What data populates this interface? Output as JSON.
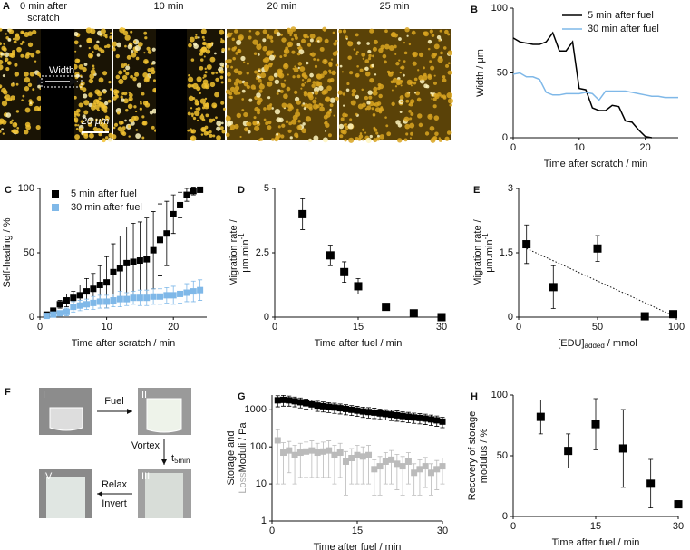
{
  "panels": {
    "a": {
      "panel": "A",
      "captions": [
        "0 min after",
        "scratch",
        "10 min",
        "20 min",
        "25 min"
      ],
      "width_label": "Width",
      "scale_label": "20 μm"
    },
    "f": {
      "panel": "F",
      "vials": [
        "I",
        "II",
        "III",
        "IV"
      ],
      "fuel": "Fuel",
      "vortex": "Vortex",
      "t": "t",
      "t_sub": "5min",
      "relax": "Relax",
      "invert": "Invert"
    }
  },
  "chart_data": [
    {
      "type": "line",
      "panel": "B",
      "xlabel": "Time after scratch / min",
      "ylabel": [
        "Width / μm"
      ],
      "xlim": [
        0,
        25
      ],
      "ylim": [
        0,
        100
      ],
      "xticks": [
        0,
        10,
        20
      ],
      "yticks": [
        0,
        50,
        100
      ],
      "x": [
        0,
        1,
        2,
        3,
        4,
        5,
        6,
        7,
        8,
        9,
        10,
        11,
        12,
        13,
        14,
        15,
        16,
        17,
        18,
        19,
        20,
        21,
        22,
        23,
        24,
        25
      ],
      "series": [
        {
          "name": "5 min after fuel",
          "color": "#000000",
          "values": [
            77,
            74,
            73,
            72,
            72,
            74,
            81,
            67,
            67,
            74,
            38,
            37,
            23,
            21,
            21,
            25,
            24,
            13,
            12,
            6,
            1,
            0,
            null,
            null,
            null,
            null
          ]
        },
        {
          "name": "30 min after fuel",
          "color": "#7fb8e8",
          "values": [
            49,
            50,
            47,
            47,
            45,
            35,
            33,
            33,
            34,
            34,
            34,
            35,
            34,
            29,
            36,
            36,
            36,
            36,
            35,
            34,
            33,
            32,
            32,
            31,
            31,
            31
          ]
        }
      ]
    },
    {
      "type": "scatter",
      "panel": "C",
      "xlabel": "Time after scratch / min",
      "ylabel": [
        "Self-healing / %"
      ],
      "xlim": [
        0,
        25
      ],
      "ylim": [
        0,
        100
      ],
      "xticks": [
        0,
        10,
        20
      ],
      "yticks": [
        0,
        50,
        100
      ],
      "x": [
        1,
        2,
        3,
        4,
        5,
        6,
        7,
        8,
        9,
        10,
        11,
        12,
        13,
        14,
        15,
        16,
        17,
        18,
        19,
        20,
        21,
        22,
        23,
        24
      ],
      "series": [
        {
          "name": "5 min after fuel",
          "color": "#000000",
          "values": [
            2,
            5,
            10,
            13,
            15,
            17,
            20,
            22,
            25,
            27,
            35,
            38,
            42,
            43,
            44,
            45,
            52,
            60,
            65,
            80,
            87,
            95,
            98,
            99
          ],
          "errors": [
            1,
            2,
            3,
            5,
            5,
            8,
            10,
            12,
            15,
            20,
            22,
            25,
            28,
            30,
            30,
            32,
            30,
            28,
            25,
            15,
            10,
            5,
            3,
            2
          ]
        },
        {
          "name": "30 min after fuel",
          "color": "#7fb8e8",
          "values": [
            1,
            2,
            3,
            4,
            8,
            9,
            10,
            11,
            12,
            12,
            13,
            14,
            14,
            15,
            15,
            15,
            16,
            16,
            17,
            17,
            18,
            19,
            20,
            21
          ],
          "errors": [
            1,
            2,
            2,
            3,
            4,
            4,
            4,
            5,
            5,
            5,
            5,
            6,
            5,
            5,
            6,
            6,
            6,
            6,
            6,
            7,
            7,
            7,
            8,
            8
          ]
        }
      ]
    },
    {
      "type": "scatter",
      "panel": "D",
      "xlabel": "Time after fuel / min",
      "ylabel": [
        "Migration rate /",
        "μm.min"
      ],
      "ylabel_sup": "-1",
      "xlim": [
        0,
        30
      ],
      "ylim": [
        0,
        5
      ],
      "xticks": [
        0,
        15,
        30
      ],
      "yticks": [
        0,
        2.5,
        5
      ],
      "x": [
        5,
        10,
        12.5,
        15,
        20,
        25,
        30
      ],
      "series": [
        {
          "color": "#000000",
          "values": [
            4.0,
            2.4,
            1.75,
            1.2,
            0.4,
            0.15,
            0.0
          ],
          "errors": [
            0.6,
            0.4,
            0.4,
            0.3,
            0.1,
            0.1,
            0.05
          ]
        }
      ]
    },
    {
      "type": "scatter",
      "panel": "E",
      "xlabel": "[EDU]",
      "xlabel_sub": "added",
      "xlabel_suffix": "/ mmol",
      "ylabel": [
        "Migration rate /",
        "μm.min"
      ],
      "ylabel_sup": "-1",
      "xlim": [
        0,
        100
      ],
      "ylim": [
        0,
        3
      ],
      "xticks": [
        0,
        50,
        100
      ],
      "yticks": [
        0,
        1.5,
        3
      ],
      "x": [
        5,
        22,
        50,
        80,
        98
      ],
      "series": [
        {
          "color": "#000000",
          "values": [
            1.7,
            0.7,
            1.6,
            0.02,
            0.07
          ],
          "errors": [
            0.45,
            0.5,
            0.3,
            0.02,
            0.05
          ]
        }
      ],
      "trendline": {
        "x": [
          5,
          100
        ],
        "y": [
          1.6,
          0
        ]
      }
    },
    {
      "type": "scatter",
      "panel": "G",
      "log_y": true,
      "xlabel": "Time after fuel / min",
      "ylabel": [
        "Storage and",
        "Moduli / Pa"
      ],
      "ylabel_prefix": "Loss",
      "xlim": [
        0,
        30
      ],
      "ylim": [
        1,
        2500
      ],
      "xticks": [
        0,
        15,
        30
      ],
      "yticks": [
        1,
        10,
        100,
        1000
      ],
      "x": [
        1,
        2,
        3,
        4,
        5,
        6,
        7,
        8,
        9,
        10,
        11,
        12,
        13,
        14,
        15,
        16,
        17,
        18,
        19,
        20,
        21,
        22,
        23,
        24,
        25,
        26,
        27,
        28,
        29,
        30
      ],
      "series": [
        {
          "color": "#000000",
          "values": [
            1800,
            1850,
            1800,
            1700,
            1600,
            1500,
            1400,
            1300,
            1250,
            1200,
            1150,
            1100,
            1050,
            1000,
            950,
            900,
            870,
            840,
            800,
            770,
            740,
            710,
            680,
            650,
            620,
            600,
            580,
            550,
            520,
            480
          ],
          "errors": [
            600,
            600,
            550,
            500,
            480,
            450,
            420,
            400,
            380,
            360,
            350,
            330,
            320,
            300,
            290,
            280,
            270,
            260,
            250,
            240,
            230,
            220,
            210,
            200,
            190,
            185,
            180,
            170,
            160,
            150
          ]
        },
        {
          "color": "#bbbbbb",
          "values": [
            150,
            70,
            80,
            60,
            70,
            75,
            80,
            70,
            75,
            80,
            60,
            70,
            40,
            50,
            60,
            55,
            60,
            25,
            30,
            40,
            45,
            35,
            30,
            40,
            20,
            25,
            30,
            20,
            25,
            30
          ],
          "errors": [
            140,
            60,
            60,
            50,
            55,
            60,
            65,
            55,
            60,
            65,
            50,
            55,
            35,
            40,
            50,
            45,
            50,
            20,
            25,
            30,
            35,
            28,
            25,
            30,
            15,
            20,
            22,
            15,
            18,
            20
          ]
        }
      ]
    },
    {
      "type": "scatter",
      "panel": "H",
      "xlabel": "Time after fuel / min",
      "ylabel": [
        "Recovery of storage",
        "modulus / %"
      ],
      "xlim": [
        0,
        30
      ],
      "ylim": [
        0,
        100
      ],
      "xticks": [
        0,
        15,
        30
      ],
      "yticks": [
        0,
        50,
        100
      ],
      "x": [
        5,
        10,
        15,
        20,
        25,
        30
      ],
      "series": [
        {
          "color": "#000000",
          "values": [
            82,
            54,
            76,
            56,
            27,
            10
          ],
          "errors": [
            14,
            14,
            21,
            32,
            20,
            3
          ]
        }
      ]
    }
  ]
}
